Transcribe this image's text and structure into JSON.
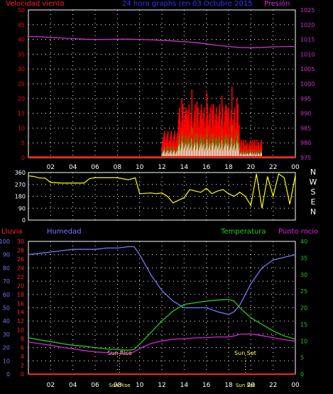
{
  "header": {
    "wind_label": "Velocidad viento",
    "title": "24 hora graphs (en 03 Octubre 2015",
    "pressure_label": "Presión"
  },
  "middle": {
    "compass": [
      "N",
      "W",
      "S",
      "E",
      "N"
    ]
  },
  "lower": {
    "rain_label": "Lluvia",
    "humidity_label": "Humedad",
    "temperature_label": "Temperatura",
    "dewpoint_label": "Punto rocío",
    "sunrise_label": "Sun Rise",
    "sunset_label": "Sun Set"
  },
  "colors": {
    "background": "#000000",
    "wind": "#ff0000",
    "gust": "#00cc00",
    "wind_avg": "#ffffff",
    "pressure": "#cc33cc",
    "direction": "#ffff00",
    "humidity": "#7777ff",
    "temperature": "#22cc22",
    "dewpoint": "#dd22dd",
    "rain": "#ff2222",
    "title": "#3333ff",
    "grid": "#ffffff",
    "sun": "#ffff66"
  },
  "chart_data": [
    {
      "type": "bar",
      "name": "wind",
      "x_ticks": [
        "02",
        "04",
        "06",
        "08",
        "10",
        "12",
        "14",
        "16",
        "18",
        "20",
        "22",
        "00"
      ],
      "y_left_ticks": [
        0,
        5,
        10,
        15,
        20,
        25,
        30,
        35,
        40,
        45,
        50
      ],
      "y_right_ticks": [
        975,
        980,
        985,
        990,
        995,
        1000,
        1005,
        1010,
        1015,
        1020,
        1025
      ],
      "ylim_left": [
        0,
        50
      ],
      "ylim_right": [
        975,
        1025
      ],
      "xlim_hours": [
        0,
        24
      ],
      "grid": true,
      "pressure_hours": [
        0,
        1,
        2,
        3,
        4,
        5,
        6,
        7,
        8,
        9,
        10,
        11,
        12,
        13,
        14,
        15,
        16,
        17,
        18,
        19,
        20,
        21,
        22,
        23,
        24
      ],
      "pressure_values": [
        1016,
        1015.9,
        1015.7,
        1015.5,
        1015.3,
        1015.1,
        1015.0,
        1015.0,
        1015.1,
        1015.1,
        1015.0,
        1014.9,
        1014.7,
        1014.5,
        1014.2,
        1014.0,
        1013.5,
        1013.0,
        1012.6,
        1012.3,
        1012.2,
        1012.3,
        1012.5,
        1012.6,
        1012.6
      ]
    },
    {
      "type": "scatter",
      "name": "wind_direction",
      "x_ticks": [
        "02",
        "04",
        "06",
        "08",
        "10",
        "12",
        "14",
        "16",
        "18",
        "20",
        "22",
        "00"
      ],
      "y_left_ticks": [
        0,
        90,
        180,
        270,
        360
      ],
      "ylim": [
        0,
        360
      ],
      "xlim_hours": [
        0,
        24
      ],
      "grid": true,
      "hours": [
        0,
        0.5,
        1,
        1.5,
        2,
        3,
        4,
        5,
        5.5,
        6,
        7,
        8,
        9,
        9.6,
        10,
        11,
        11.5,
        12,
        12.5,
        13,
        13.5,
        14,
        14.5,
        15,
        15.5,
        16,
        16.5,
        17,
        17.5,
        18,
        18.5,
        19,
        19.5,
        20,
        20.5,
        21,
        21.5,
        22,
        22.5,
        23,
        23.5,
        24
      ],
      "values": [
        335,
        330,
        318,
        318,
        285,
        280,
        280,
        280,
        315,
        320,
        320,
        320,
        305,
        320,
        200,
        205,
        200,
        205,
        180,
        130,
        150,
        170,
        230,
        220,
        210,
        240,
        200,
        220,
        230,
        200,
        180,
        210,
        180,
        110,
        350,
        90,
        330,
        180,
        350,
        320,
        120,
        340
      ]
    },
    {
      "type": "line",
      "name": "humidity_temperature",
      "x_ticks": [
        "02",
        "04",
        "06",
        "08",
        "10",
        "12",
        "14",
        "16",
        "18",
        "20",
        "22",
        "00"
      ],
      "y_left_ticks": [
        0,
        10,
        20,
        30,
        40,
        50,
        60,
        70,
        80,
        90,
        100
      ],
      "y_left2_ticks": [
        0,
        2,
        4,
        6,
        8,
        10,
        12,
        14,
        16,
        18,
        20,
        22,
        24,
        26,
        28,
        30
      ],
      "y_right_ticks": [
        0,
        5,
        10,
        15,
        20,
        25,
        30,
        35,
        40
      ],
      "ylim_humidity": [
        0,
        100
      ],
      "ylim_rain": [
        0,
        30
      ],
      "ylim_temp": [
        0,
        40
      ],
      "xlim_hours": [
        0,
        24
      ],
      "grid": true,
      "sunrise_hour": 8.2,
      "sunset_hour": 19.5,
      "hours": [
        0,
        1,
        2,
        3,
        4,
        5,
        6,
        7,
        8,
        9,
        9.5,
        10,
        11,
        12,
        13,
        14,
        15,
        16,
        17,
        18,
        18.5,
        19,
        20,
        21,
        22,
        23,
        24
      ],
      "humidity": [
        90,
        91,
        92,
        93,
        94,
        94,
        94,
        95,
        95,
        96,
        96,
        90,
        75,
        63,
        55,
        50,
        50,
        50,
        47,
        45,
        47,
        52,
        68,
        80,
        86,
        88,
        90
      ],
      "temperature": [
        11,
        10.3,
        9.8,
        9.2,
        8.7,
        8.4,
        8,
        7.6,
        7.4,
        7.2,
        7.4,
        9,
        12.5,
        16,
        19,
        21,
        21.5,
        22,
        22.3,
        22.5,
        22,
        20,
        17,
        15,
        13,
        11.5,
        10.5
      ],
      "dewpoint": [
        9.7,
        9.2,
        8.7,
        8.1,
        7.6,
        7.1,
        6.7,
        6.5,
        6.2,
        6.2,
        6.7,
        7.7,
        9.2,
        10,
        10.5,
        10.7,
        10.9,
        11,
        11.2,
        11.2,
        11.5,
        12,
        12.1,
        11.6,
        11,
        10.4,
        9.9
      ],
      "rain": [
        0,
        0,
        0,
        0,
        0,
        0,
        0,
        0,
        0,
        0,
        0,
        0,
        0,
        0,
        0,
        0,
        0,
        0,
        0,
        0,
        0,
        0,
        0,
        0,
        0,
        0,
        0
      ]
    }
  ]
}
